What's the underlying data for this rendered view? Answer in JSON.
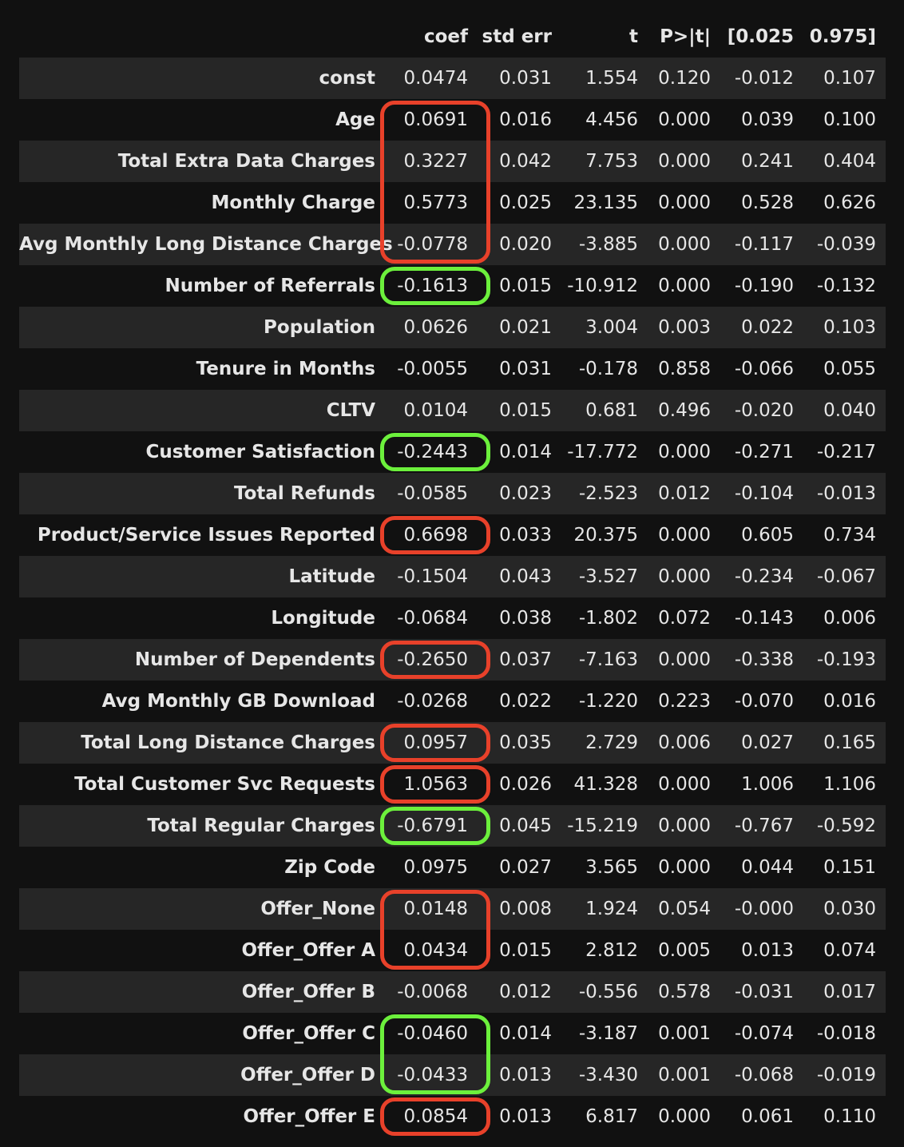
{
  "columns": [
    "coef",
    "std err",
    "t",
    "P>|t|",
    "[0.025",
    "0.975]"
  ],
  "rows": [
    {
      "label": "const",
      "values": [
        "0.0474",
        "0.031",
        "1.554",
        "0.120",
        "-0.012",
        "0.107"
      ]
    },
    {
      "label": "Age",
      "values": [
        "0.0691",
        "0.016",
        "4.456",
        "0.000",
        "0.039",
        "0.100"
      ]
    },
    {
      "label": "Total Extra Data Charges",
      "values": [
        "0.3227",
        "0.042",
        "7.753",
        "0.000",
        "0.241",
        "0.404"
      ]
    },
    {
      "label": "Monthly Charge",
      "values": [
        "0.5773",
        "0.025",
        "23.135",
        "0.000",
        "0.528",
        "0.626"
      ]
    },
    {
      "label": "Avg Monthly Long Distance Charges",
      "values": [
        "-0.0778",
        "0.020",
        "-3.885",
        "0.000",
        "-0.117",
        "-0.039"
      ]
    },
    {
      "label": "Number of Referrals",
      "values": [
        "-0.1613",
        "0.015",
        "-10.912",
        "0.000",
        "-0.190",
        "-0.132"
      ]
    },
    {
      "label": "Population",
      "values": [
        "0.0626",
        "0.021",
        "3.004",
        "0.003",
        "0.022",
        "0.103"
      ]
    },
    {
      "label": "Tenure in Months",
      "values": [
        "-0.0055",
        "0.031",
        "-0.178",
        "0.858",
        "-0.066",
        "0.055"
      ]
    },
    {
      "label": "CLTV",
      "values": [
        "0.0104",
        "0.015",
        "0.681",
        "0.496",
        "-0.020",
        "0.040"
      ]
    },
    {
      "label": "Customer Satisfaction",
      "values": [
        "-0.2443",
        "0.014",
        "-17.772",
        "0.000",
        "-0.271",
        "-0.217"
      ]
    },
    {
      "label": "Total Refunds",
      "values": [
        "-0.0585",
        "0.023",
        "-2.523",
        "0.012",
        "-0.104",
        "-0.013"
      ]
    },
    {
      "label": "Product/Service Issues Reported",
      "values": [
        "0.6698",
        "0.033",
        "20.375",
        "0.000",
        "0.605",
        "0.734"
      ]
    },
    {
      "label": "Latitude",
      "values": [
        "-0.1504",
        "0.043",
        "-3.527",
        "0.000",
        "-0.234",
        "-0.067"
      ]
    },
    {
      "label": "Longitude",
      "values": [
        "-0.0684",
        "0.038",
        "-1.802",
        "0.072",
        "-0.143",
        "0.006"
      ]
    },
    {
      "label": "Number of Dependents",
      "values": [
        "-0.2650",
        "0.037",
        "-7.163",
        "0.000",
        "-0.338",
        "-0.193"
      ]
    },
    {
      "label": "Avg Monthly GB Download",
      "values": [
        "-0.0268",
        "0.022",
        "-1.220",
        "0.223",
        "-0.070",
        "0.016"
      ]
    },
    {
      "label": "Total Long Distance Charges",
      "values": [
        "0.0957",
        "0.035",
        "2.729",
        "0.006",
        "0.027",
        "0.165"
      ]
    },
    {
      "label": "Total Customer Svc Requests",
      "values": [
        "1.0563",
        "0.026",
        "41.328",
        "0.000",
        "1.006",
        "1.106"
      ]
    },
    {
      "label": "Total Regular Charges",
      "values": [
        "-0.6791",
        "0.045",
        "-15.219",
        "0.000",
        "-0.767",
        "-0.592"
      ]
    },
    {
      "label": "Zip Code",
      "values": [
        "0.0975",
        "0.027",
        "3.565",
        "0.000",
        "0.044",
        "0.151"
      ]
    },
    {
      "label": "Offer_None",
      "values": [
        "0.0148",
        "0.008",
        "1.924",
        "0.054",
        "-0.000",
        "0.030"
      ]
    },
    {
      "label": "Offer_Offer A",
      "values": [
        "0.0434",
        "0.015",
        "2.812",
        "0.005",
        "0.013",
        "0.074"
      ]
    },
    {
      "label": "Offer_Offer B",
      "values": [
        "-0.0068",
        "0.012",
        "-0.556",
        "0.578",
        "-0.031",
        "0.017"
      ]
    },
    {
      "label": "Offer_Offer C",
      "values": [
        "-0.0460",
        "0.014",
        "-3.187",
        "0.001",
        "-0.074",
        "-0.018"
      ]
    },
    {
      "label": "Offer_Offer D",
      "values": [
        "-0.0433",
        "0.013",
        "-3.430",
        "0.001",
        "-0.068",
        "-0.019"
      ]
    },
    {
      "label": "Offer_Offer E",
      "values": [
        "0.0854",
        "0.013",
        "6.817",
        "0.000",
        "0.061",
        "0.110"
      ]
    }
  ],
  "highlights": [
    {
      "color": "#e8412a",
      "rows": [
        "Age",
        "Total Extra Data Charges",
        "Monthly Charge",
        "Avg Monthly Long Distance Charges"
      ]
    },
    {
      "color": "#6cf03c",
      "rows": [
        "Number of Referrals"
      ]
    },
    {
      "color": "#6cf03c",
      "rows": [
        "Customer Satisfaction"
      ]
    },
    {
      "color": "#e8412a",
      "rows": [
        "Product/Service Issues Reported"
      ]
    },
    {
      "color": "#e8412a",
      "rows": [
        "Number of Dependents"
      ]
    },
    {
      "color": "#e8412a",
      "rows": [
        "Total Long Distance Charges"
      ]
    },
    {
      "color": "#e8412a",
      "rows": [
        "Total Customer Svc Requests"
      ]
    },
    {
      "color": "#6cf03c",
      "rows": [
        "Total Regular Charges"
      ]
    },
    {
      "color": "#e8412a",
      "rows": [
        "Offer_None",
        "Offer_Offer A"
      ]
    },
    {
      "color": "#6cf03c",
      "rows": [
        "Offer_Offer C",
        "Offer_Offer D"
      ]
    },
    {
      "color": "#e8412a",
      "rows": [
        "Offer_Offer E"
      ]
    }
  ]
}
